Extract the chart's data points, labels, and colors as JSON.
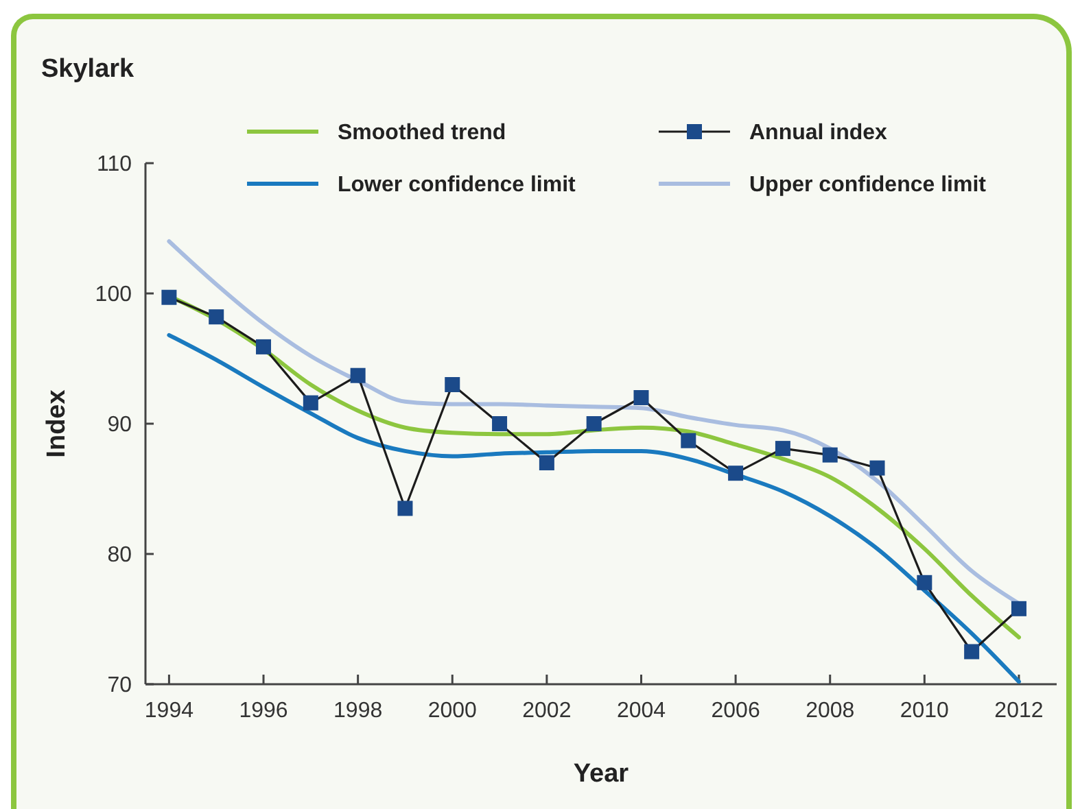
{
  "chart_data": {
    "type": "line",
    "title": "Skylark",
    "xlabel": "Year",
    "ylabel": "Index",
    "x": [
      1994,
      1995,
      1996,
      1997,
      1998,
      1999,
      2000,
      2001,
      2002,
      2003,
      2004,
      2005,
      2006,
      2007,
      2008,
      2009,
      2010,
      2011,
      2012
    ],
    "series": [
      {
        "name": "Smoothed trend",
        "color": "#8dc63f",
        "marker": "none",
        "values": [
          99.8,
          98.0,
          95.7,
          93.0,
          91.0,
          89.7,
          89.3,
          89.2,
          89.2,
          89.5,
          89.7,
          89.4,
          88.4,
          87.3,
          85.9,
          83.5,
          80.4,
          76.8,
          73.6
        ]
      },
      {
        "name": "Annual index",
        "color": "#1b4a8a",
        "marker": "square",
        "values": [
          99.7,
          98.2,
          95.9,
          91.6,
          93.7,
          83.5,
          93.0,
          90.0,
          87.0,
          90.0,
          92.0,
          88.7,
          86.2,
          88.1,
          87.6,
          86.6,
          77.8,
          72.5,
          75.8
        ]
      },
      {
        "name": "Lower confidence limit",
        "color": "#1a7abf",
        "marker": "none",
        "values": [
          96.8,
          94.9,
          92.8,
          90.8,
          88.9,
          87.9,
          87.5,
          87.7,
          87.8,
          87.9,
          87.9,
          87.3,
          86.1,
          84.8,
          82.9,
          80.4,
          77.2,
          73.9,
          70.2
        ]
      },
      {
        "name": "Upper confidence limit",
        "color": "#a9bde0",
        "marker": "none",
        "values": [
          104.0,
          100.7,
          97.7,
          95.2,
          93.3,
          91.7,
          91.5,
          91.5,
          91.4,
          91.3,
          91.2,
          90.5,
          89.9,
          89.5,
          88.1,
          85.6,
          82.2,
          78.7,
          76.2
        ]
      }
    ],
    "xlim": [
      1993.5,
      2012.8
    ],
    "xticks": [
      1994,
      1996,
      1998,
      2000,
      2002,
      2004,
      2006,
      2008,
      2010,
      2012
    ],
    "ylim": [
      70,
      110
    ],
    "yticks": [
      70,
      80,
      90,
      100,
      110
    ],
    "grid": false,
    "legend": "top",
    "line_style": "solid"
  }
}
